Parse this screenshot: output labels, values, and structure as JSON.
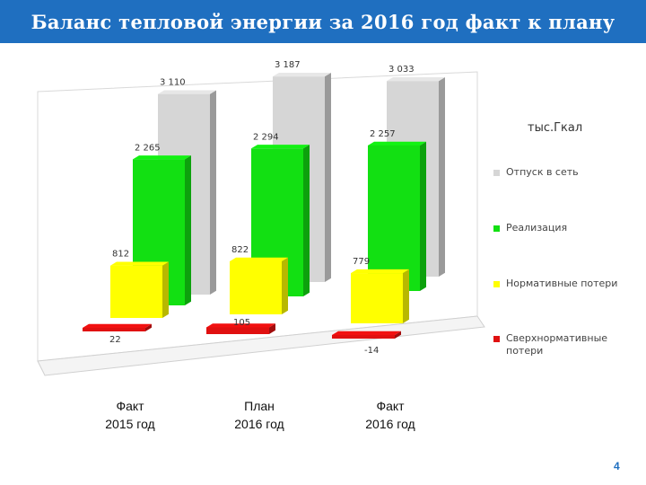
{
  "slide": {
    "title": "Баланс тепловой энергии за 2016 год факт к плану",
    "unit": "тыс.Гкал",
    "page_number": "4"
  },
  "chart_data": {
    "type": "bar",
    "style": "3d-grouped",
    "categories": [
      {
        "line1": "Факт",
        "line2": "2015 год"
      },
      {
        "line1": "План",
        "line2": "2016 год"
      },
      {
        "line1": "Факт",
        "line2": "2016 год"
      }
    ],
    "series": [
      {
        "name": "Отпуск в сеть",
        "color": "#d6d6d6",
        "values": [
          3110,
          3187,
          3033
        ],
        "labels": [
          "3 110",
          "3 187",
          "3 033"
        ]
      },
      {
        "name": "Реализация",
        "color": "#12e012",
        "values": [
          2265,
          2294,
          2257
        ],
        "labels": [
          "2 265",
          "2 294",
          "2 257"
        ]
      },
      {
        "name": "Нормативные потери",
        "color": "#ffff00",
        "values": [
          812,
          822,
          779
        ],
        "labels": [
          "812",
          "822",
          "779"
        ]
      },
      {
        "name": "Сверхнормативные потери",
        "color": "#e01010",
        "values": [
          22,
          105,
          -14
        ],
        "labels": [
          "22",
          "105",
          "-14"
        ]
      }
    ],
    "legend_position": "right",
    "grid": false
  }
}
